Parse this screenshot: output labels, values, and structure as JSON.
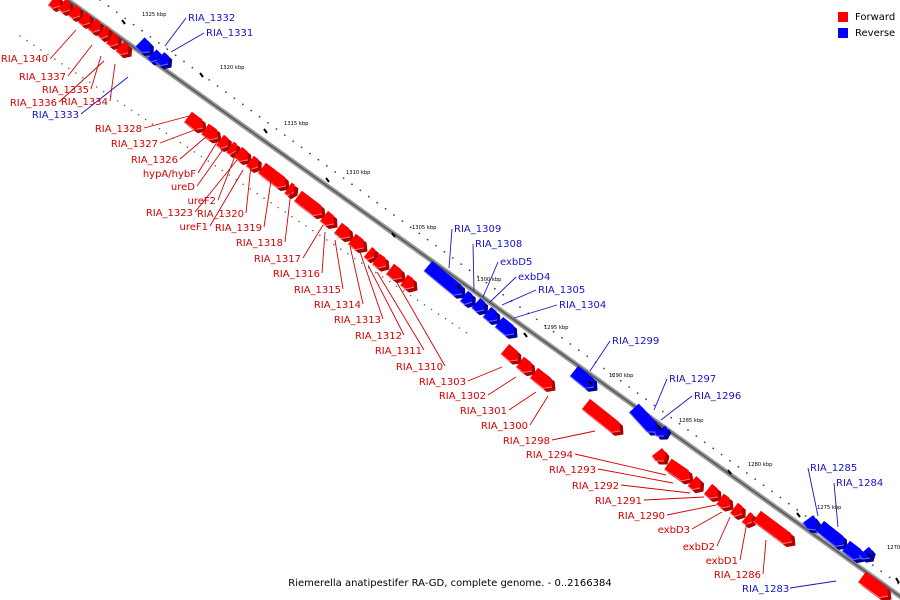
{
  "legend": [
    {
      "label": "Forward",
      "color": "#ff0000"
    },
    {
      "label": "Reverse",
      "color": "#0000ff"
    }
  ],
  "caption": "Riemerella anatipestifer RA-GD, complete genome. - 0..2166384",
  "ticks": [
    "1325 kbp",
    "1320 kbp",
    "1315 kbp",
    "1310 kbp",
    "1305 kbp",
    "1300 kbp",
    "1295 kbp",
    "1290 kbp",
    "1285 kbp",
    "1280 kbp",
    "1275 kbp",
    "1270 kbp"
  ],
  "forward_genes": [
    "RIA_1340",
    "RIA_1337",
    "RIA_1335",
    "RIA_1336",
    "RIA_1334",
    "RIA_1328",
    "RIA_1327",
    "RIA_1326",
    "hypA/hybF",
    "ureD",
    "ureF2",
    "RIA_1323",
    "RIA_1320",
    "ureF1",
    "RIA_1319",
    "RIA_1318",
    "RIA_1317",
    "RIA_1316",
    "RIA_1315",
    "RIA_1314",
    "RIA_1313",
    "RIA_1312",
    "RIA_1311",
    "RIA_1310",
    "RIA_1303",
    "RIA_1302",
    "RIA_1301",
    "RIA_1300",
    "RIA_1298",
    "RIA_1294",
    "RIA_1293",
    "RIA_1292",
    "RIA_1291",
    "RIA_1290",
    "exbD3",
    "exbD2",
    "exbD1",
    "RIA_1286"
  ],
  "reverse_genes": [
    "RIA_1332",
    "RIA_1331",
    "RIA_1333",
    "RIA_1309",
    "RIA_1308",
    "exbD5",
    "exbD4",
    "RIA_1305",
    "RIA_1304",
    "RIA_1299",
    "RIA_1297",
    "RIA_1296",
    "RIA_1285",
    "RIA_1284",
    "RIA_1283"
  ]
}
